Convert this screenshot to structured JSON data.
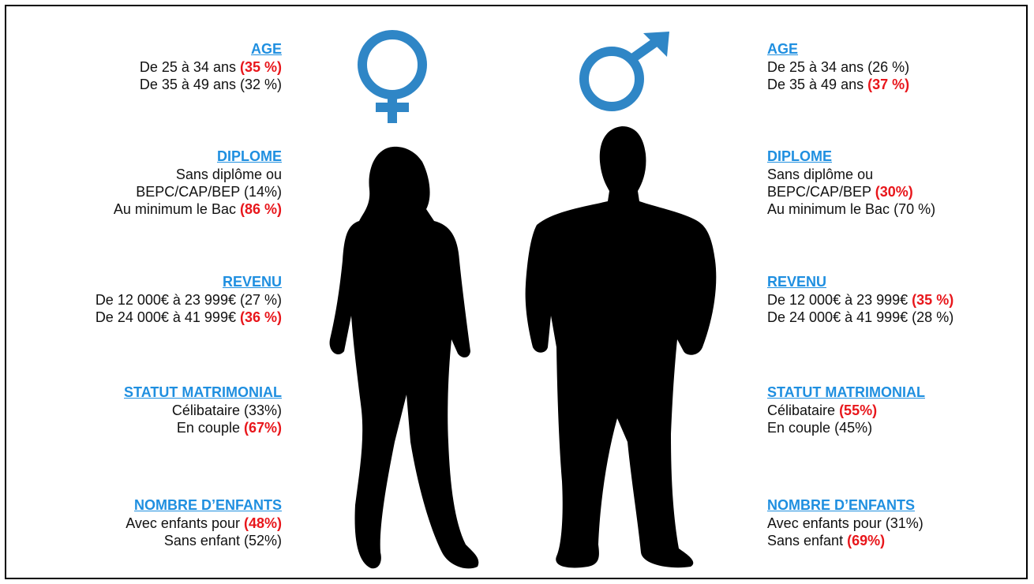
{
  "women": {
    "sections": [
      {
        "title": "AGE",
        "lines": [
          {
            "text": "De 25 à 34 ans",
            "value": "(35 %)",
            "highlight": true
          },
          {
            "text": "De 35 à 49 ans",
            "value": "(32 %)",
            "highlight": false
          }
        ]
      },
      {
        "title": "DIPLOME",
        "lines": [
          {
            "text": "Sans diplôme ou"
          },
          {
            "text": "BEPC/CAP/BEP",
            "value": "(14%)",
            "highlight": false
          },
          {
            "text": "Au minimum  le Bac",
            "value": "(86 %)",
            "highlight": true
          }
        ]
      },
      {
        "title": "REVENU",
        "lines": [
          {
            "text": "De 12 000€ à 23 999€",
            "value": "(27 %)",
            "highlight": false
          },
          {
            "text": "De 24 000€ à 41 999€",
            "value": "(36 %)",
            "highlight": true
          }
        ]
      },
      {
        "title": "STATUT MATRIMONIAL",
        "lines": [
          {
            "text": "Célibataire",
            "value": "(33%)",
            "highlight": false
          },
          {
            "text": "En couple",
            "value": "(67%)",
            "highlight": true
          }
        ]
      },
      {
        "title": "NOMBRE D’ENFANTS",
        "lines": [
          {
            "text": "Avec enfants pour",
            "value": "(48%)",
            "highlight": true
          },
          {
            "text": "Sans enfant",
            "value": "(52%)",
            "highlight": false
          }
        ]
      }
    ]
  },
  "men": {
    "sections": [
      {
        "title": "AGE",
        "lines": [
          {
            "text": "De 25 à 34 ans",
            "value": "(26 %)",
            "highlight": false
          },
          {
            "text": "De 35 à 49 ans",
            "value": "(37 %)",
            "highlight": true
          }
        ]
      },
      {
        "title": "DIPLOME",
        "lines": [
          {
            "text": "Sans diplôme  ou"
          },
          {
            "text": "BEPC/CAP/BEP",
            "value": "(30%)",
            "highlight": true
          },
          {
            "text": "Au minimum  le Bac",
            "value": "(70 %)",
            "highlight": false
          }
        ]
      },
      {
        "title": "REVENU",
        "lines": [
          {
            "text": "De 12 000€ à 23 999€",
            "value": "(35 %)",
            "highlight": true
          },
          {
            "text": "De 24 000€ à 41 999€",
            "value": "(28 %)",
            "highlight": false
          }
        ]
      },
      {
        "title": "STATUT MATRIMONIAL",
        "lines": [
          {
            "text": "Célibataire",
            "value": "(55%)",
            "highlight": true
          },
          {
            "text": "En couple",
            "value": "(45%)",
            "highlight": false
          }
        ]
      },
      {
        "title": "NOMBRE D’ENFANTS",
        "lines": [
          {
            "text": "Avec enfants pour",
            "value": "(31%)",
            "highlight": false
          },
          {
            "text": "Sans enfant",
            "value": "(69%)",
            "highlight": true
          }
        ]
      }
    ]
  }
}
